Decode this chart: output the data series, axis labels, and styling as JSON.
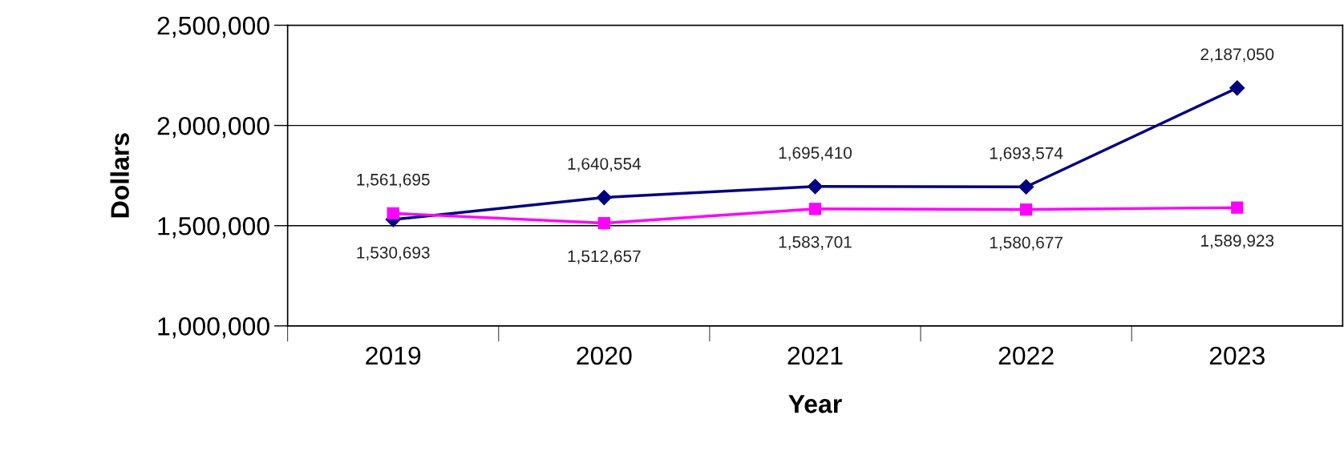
{
  "chart_data": {
    "type": "line",
    "xlabel": "Year",
    "ylabel": "Dollars",
    "categories": [
      "2019",
      "2020",
      "2021",
      "2022",
      "2023"
    ],
    "series": [
      {
        "color": "#000080",
        "marker": "diamond",
        "values": [
          1530693,
          1640554,
          1695410,
          1693574,
          2187050
        ],
        "value_labels": [
          "1,530,693",
          "1,640,554",
          "1,695,410",
          "1,693,574",
          "2,187,050"
        ]
      },
      {
        "color": "#ff00ff",
        "marker": "square",
        "values": [
          1561695,
          1512657,
          1583701,
          1580677,
          1589923
        ],
        "value_labels": [
          "1,561,695",
          "1,512,657",
          "1,583,701",
          "1,580,677",
          "1,589,923"
        ]
      }
    ],
    "ylim": [
      1000000,
      2500000
    ],
    "yticks": [
      {
        "value": 1000000,
        "label": "1,000,000"
      },
      {
        "value": 1500000,
        "label": "1,500,000"
      },
      {
        "value": 2000000,
        "label": "2,000,000"
      },
      {
        "value": 2500000,
        "label": "2,500,000"
      }
    ],
    "grid": "y",
    "line_style": "solid"
  }
}
